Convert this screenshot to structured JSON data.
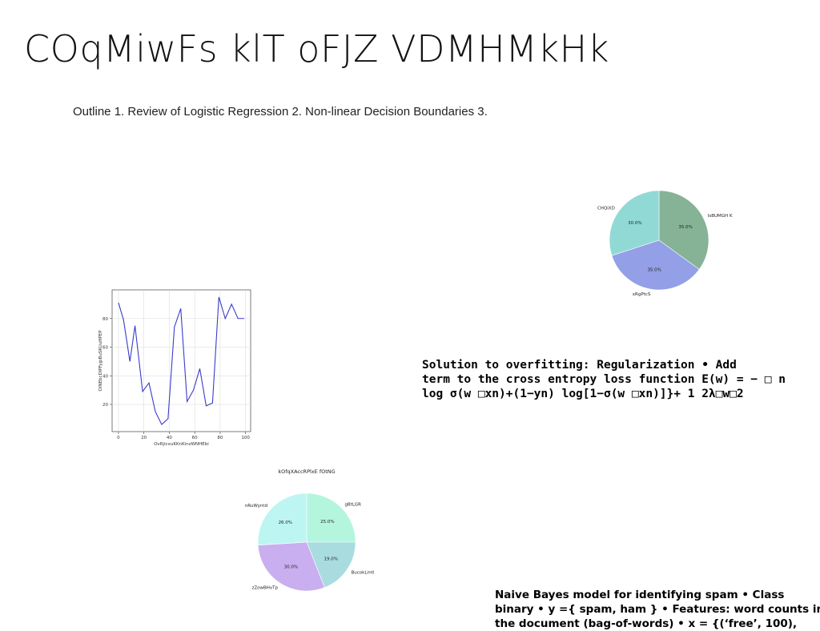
{
  "slide": {
    "title": "COqMiwFs klT oFJZ VDMHMkHk",
    "outline": "Outline 1. Review of Logistic Regression 2. Non-linear Decision Boundaries 3.",
    "regularization_lines": [
      "Solution to overfitting: Regularization • Add",
      "term to the cross entropy loss function E(w) = − □ n",
      "log σ(w □xn)+(1−yn) log[1−σ(w □xn)]}+ 1 2λ□w□2"
    ],
    "naive_bayes_lines": [
      "Naive Bayes model for identifying spam • Class",
      "binary • y ={ spam, ham } • Features: word counts in",
      "the document (bag-of-words) • x = {(‘free’, 100),"
    ]
  },
  "chart_data": [
    {
      "type": "pie",
      "title": "",
      "labels": [
        "IsBUMGH K",
        "xRgPtcS",
        "CHQiXD"
      ],
      "values": [
        35.0,
        35.0,
        30.0
      ],
      "percent_labels": [
        "35.0%",
        "35.0%",
        "30.0%"
      ],
      "colors": [
        "#86b396",
        "#939fe6",
        "#91d9d5"
      ],
      "start_angle_deg": 90,
      "direction": "clockwise"
    },
    {
      "type": "line",
      "title": "",
      "xlabel": "OvRjicxuKKnKinzWNHEbi",
      "ylabel": "OlNEbcDIPFyjpBuSKUuHPEP",
      "x": [
        0,
        4,
        9,
        13,
        19,
        24,
        29,
        34,
        39,
        44,
        49,
        54,
        59,
        64,
        69,
        74,
        79,
        84,
        89,
        94,
        99
      ],
      "y": [
        91,
        79,
        50,
        75,
        29,
        35,
        15,
        6,
        10,
        74,
        87,
        22,
        30,
        45,
        19,
        21,
        95,
        80,
        90,
        80,
        80
      ],
      "xlim": [
        -5,
        104
      ],
      "ylim": [
        1,
        100
      ],
      "xticks": [
        0,
        20,
        40,
        60,
        80,
        100
      ],
      "yticks": [
        20,
        40,
        60,
        80
      ],
      "grid": true,
      "color": "#3b3bcc"
    },
    {
      "type": "pie",
      "title": "kOfqXAccRPlxE fOtNG",
      "labels": [
        "gBtLGR",
        "BucokLmtl",
        "zZowBHvTp",
        "nRuWyntd"
      ],
      "values": [
        25.0,
        19.0,
        30.0,
        26.0
      ],
      "percent_labels": [
        "25.0%",
        "19.0%",
        "30.0%",
        "26.0%"
      ],
      "colors": [
        "#b3f5dd",
        "#a9dcdf",
        "#c9aef0",
        "#bdf5f3"
      ],
      "start_angle_deg": 90,
      "direction": "clockwise"
    }
  ]
}
